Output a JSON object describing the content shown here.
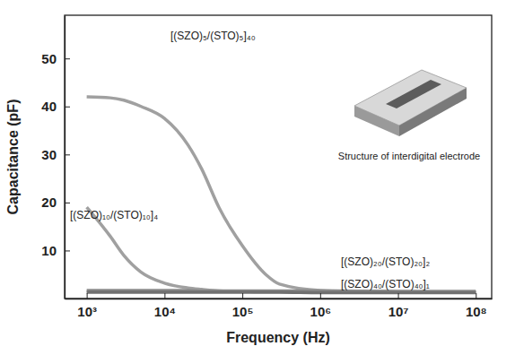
{
  "chart_data": {
    "type": "line",
    "x_label": "Frequency (Hz)",
    "y_label": "Capacitance (pF)",
    "log": "x",
    "x": [
      1000,
      2000,
      3000,
      5000,
      10000,
      20000,
      30000,
      50000,
      100000,
      200000,
      300000,
      1000000,
      10000000,
      100000000
    ],
    "xlim": [
      520,
      160000000
    ],
    "xticks": [
      {
        "value": 1000,
        "label": "10³"
      },
      {
        "value": 10000,
        "label": "10⁴"
      },
      {
        "value": 100000,
        "label": "10⁵"
      },
      {
        "value": 1000000,
        "label": "10⁶"
      },
      {
        "value": 10000000,
        "label": "10⁷"
      },
      {
        "value": 100000000,
        "label": "10⁸"
      }
    ],
    "ylim": [
      0,
      59
    ],
    "yticks": [
      10,
      20,
      30,
      40,
      50
    ],
    "series": [
      {
        "name": "[(SZO)₅/(STO)₅]₄₀",
        "color": "#a0a0a0",
        "values": [
          42,
          41.8,
          41.3,
          40,
          37.5,
          32,
          27,
          19,
          11,
          5,
          3,
          1.7,
          1.4,
          1.3
        ]
      },
      {
        "name": "[(SZO)₁₀/(STO)₁₀]₄",
        "color": "#a0a0a0",
        "values": [
          19,
          13,
          9,
          5.5,
          3.2,
          2.2,
          1.9,
          1.6,
          1.5,
          1.4,
          1.4,
          1.3,
          1.3,
          1.3
        ]
      },
      {
        "name": "[(SZO)₂₀/(STO)₂₀]₂",
        "color": "#8a8a8a",
        "values": [
          1.7,
          1.7,
          1.7,
          1.7,
          1.7,
          1.7,
          1.6,
          1.6,
          1.6,
          1.6,
          1.6,
          1.6,
          1.5,
          1.5
        ]
      },
      {
        "name": "[(SZO)₄₀/(STO)₄₀]₁",
        "color": "#707070",
        "values": [
          1.3,
          1.3,
          1.3,
          1.3,
          1.3,
          1.3,
          1.3,
          1.3,
          1.3,
          1.3,
          1.3,
          1.2,
          1.2,
          1.2
        ]
      }
    ],
    "annotations": [
      "Structure of interdigital electrode"
    ]
  }
}
